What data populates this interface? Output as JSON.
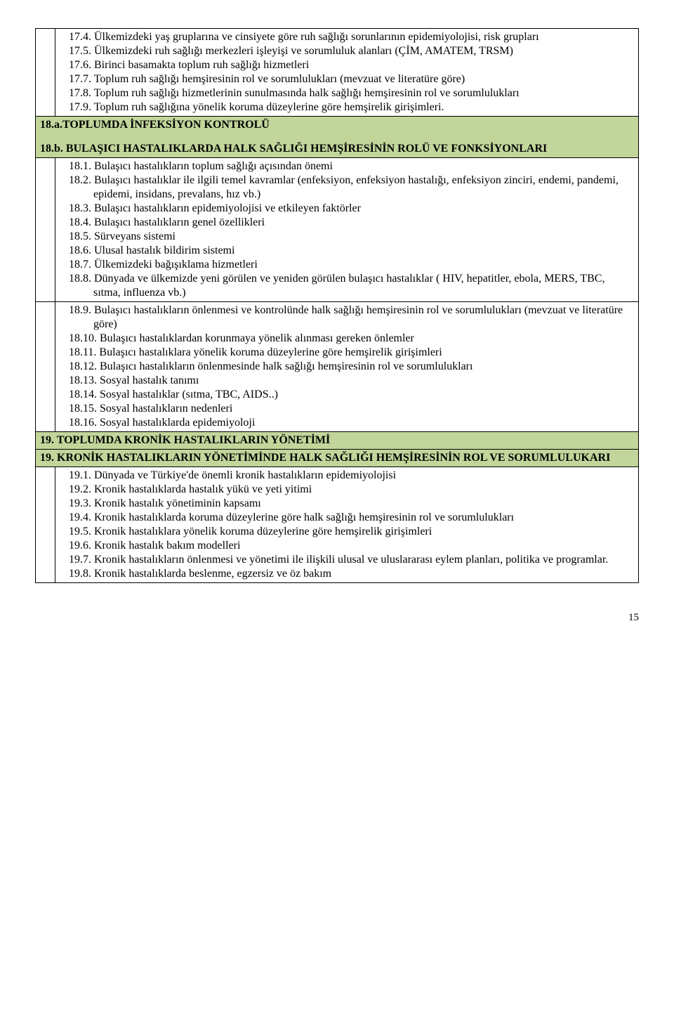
{
  "block17": {
    "items": [
      "17.4.  Ülkemizdeki yaş gruplarına ve cinsiyete göre ruh sağlığı sorunlarının epidemiyolojisi, risk grupları",
      "17.5.  Ülkemizdeki ruh sağlığı merkezleri işleyişi ve sorumluluk alanları (ÇİM, AMATEM, TRSM)",
      "17.6.  Birinci basamakta toplum ruh sağlığı hizmetleri",
      "17.7.  Toplum ruh sağlığı hemşiresinin rol ve sorumlulukları (mevzuat ve literatüre göre)",
      "17.8.  Toplum ruh sağlığı hizmetlerinin sunulmasında halk sağlığı hemşiresinin rol ve sorumlulukları",
      "17.9.  Toplum ruh sağlığına yönelik koruma düzeylerine göre hemşirelik girişimleri."
    ]
  },
  "heading18a": "18.a.TOPLUMDA İNFEKSİYON KONTROLÜ",
  "heading18b": "18.b. BULAŞICI HASTALIKLARDA HALK SAĞLIĞI HEMŞİRESİNİN ROLÜ VE FONKSİYONLARI",
  "block18first": {
    "items": [
      "18.1.  Bulaşıcı hastalıkların toplum sağlığı açısından önemi",
      "18.2.  Bulaşıcı hastalıklar ile ilgili temel kavramlar (enfeksiyon, enfeksiyon hastalığı, enfeksiyon zinciri, endemi, pandemi, epidemi, insidans, prevalans, hız vb.)",
      "18.3.  Bulaşıcı hastalıkların epidemiyolojisi ve etkileyen faktörler",
      "18.4.  Bulaşıcı hastalıkların genel özellikleri",
      "18.5.  Sürveyans sistemi",
      "18.6.  Ulusal hastalık bildirim sistemi",
      "18.7.  Ülkemizdeki bağışıklama hizmetleri",
      "18.8.  Dünyada ve ülkemizde yeni görülen ve yeniden görülen bulaşıcı hastalıklar ( HIV, hepatitler, ebola, MERS, TBC, sıtma, influenza vb.)"
    ]
  },
  "block18second": {
    "items": [
      "18.9.  Bulaşıcı hastalıkların önlenmesi ve kontrolünde halk sağlığı hemşiresinin rol ve sorumlulukları (mevzuat ve literatüre göre)",
      "18.10. Bulaşıcı hastalıklardan korunmaya yönelik alınması gereken önlemler",
      "18.11. Bulaşıcı hastalıklara yönelik koruma düzeylerine göre hemşirelik girişimleri",
      "18.12. Bulaşıcı hastalıkların önlenmesinde halk sağlığı hemşiresinin rol ve sorumlulukları",
      "18.13. Sosyal hastalık tanımı",
      "18.14. Sosyal hastalıklar (sıtma, TBC, AIDS..)",
      "18.15. Sosyal hastalıkların nedenleri",
      "18.16. Sosyal hastalıklarda epidemiyoloji"
    ]
  },
  "heading19a": "19. TOPLUMDA KRONİK HASTALIKLARIN YÖNETİMİ",
  "heading19b": "19. KRONİK HASTALIKLARIN YÖNETİMİNDE HALK SAĞLIĞI HEMŞİRESİNİN ROL VE SORUMLULUKARI",
  "block19": {
    "items": [
      "19.1.  Dünyada ve Türkiye'de önemli kronik hastalıkların epidemiyolojisi",
      "19.2.  Kronik hastalıklarda hastalık yükü ve yeti yitimi",
      "19.3.  Kronik hastalık yönetiminin kapsamı",
      "19.4.  Kronik hastalıklarda koruma düzeylerine göre halk sağlığı hemşiresinin rol ve sorumlulukları",
      "19.5.  Kronik hastalıklara yönelik koruma düzeylerine göre hemşirelik girişimleri",
      "19.6.  Kronik hastalık bakım modelleri",
      "19.7.  Kronik hastalıkların önlenmesi ve yönetimi ile ilişkili ulusal ve uluslararası eylem planları, politika ve programlar.",
      "19.8.  Kronik hastalıklarda beslenme, egzersiz ve öz bakım"
    ]
  },
  "pageNumber": "15"
}
